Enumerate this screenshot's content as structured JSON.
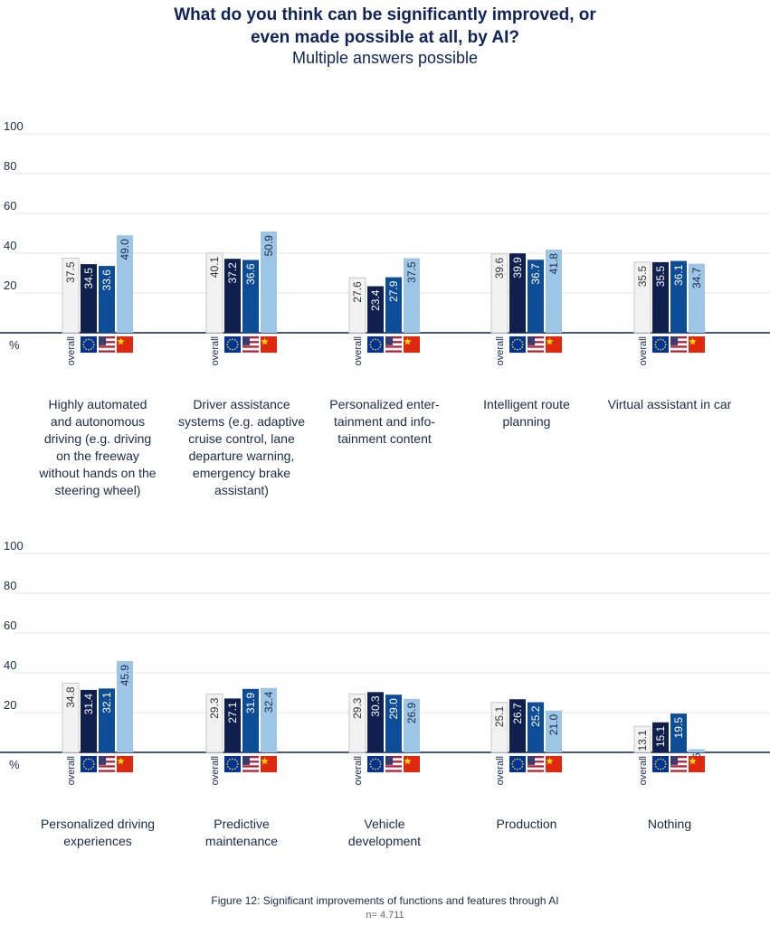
{
  "title_line1": "What do you think can be significantly improved, or",
  "title_line2": "even made possible at all, by AI?",
  "subtitle": "Multiple answers possible",
  "caption": "Figure 12: Significant improvements of functions and features through AI",
  "note": "n= 4.711",
  "colors": {
    "overall": "#f2f2f2",
    "eu": "#0f1f4e",
    "us": "#0d4c96",
    "cn": "#9dc5e6",
    "axis": "#10245a",
    "grid": "#e6e6e6"
  },
  "chart_data": [
    {
      "type": "bar",
      "ylim": [
        0,
        100
      ],
      "yticks": [
        20,
        40,
        60,
        80,
        100
      ],
      "unit_label": "%",
      "series": [
        {
          "name": "overall",
          "values": [
            37.5,
            40.1,
            27.6,
            39.6,
            35.5
          ]
        },
        {
          "values": [
            34.5,
            37.2,
            23.4,
            39.9,
            35.5
          ]
        },
        {
          "values": [
            33.6,
            36.6,
            27.9,
            36.7,
            36.1
          ]
        },
        {
          "values": [
            49.0,
            50.9,
            37.5,
            41.8,
            34.7
          ]
        }
      ],
      "flag_icons": [
        "eu-flag-icon",
        "us-flag-icon",
        "china-flag-icon"
      ],
      "categories": [
        [
          "Highly automated",
          "and autonomous",
          "driving (e.g. driving",
          "on the freeway",
          "without hands on the",
          "steering wheel)"
        ],
        [
          "Driver assistance",
          "systems (e.g. adaptive",
          "cruise control, lane",
          "departure warning,",
          "emergency brake",
          "assistant)"
        ],
        [
          "Personalized enter-",
          "tainment and info-",
          "tainment content"
        ],
        [
          "Intelligent route",
          "planning"
        ],
        [
          "Virtual assistant in car"
        ]
      ]
    },
    {
      "type": "bar",
      "ylim": [
        0,
        100
      ],
      "yticks": [
        20,
        40,
        60,
        80,
        100
      ],
      "unit_label": "%",
      "series": [
        {
          "name": "overall",
          "values": [
            34.8,
            29.3,
            29.3,
            25.1,
            13.1
          ]
        },
        {
          "values": [
            31.4,
            27.1,
            30.3,
            26.7,
            15.1
          ]
        },
        {
          "values": [
            32.1,
            31.9,
            29.0,
            25.2,
            19.5
          ]
        },
        {
          "values": [
            45.9,
            32.4,
            26.9,
            21.0,
            1.6
          ]
        }
      ],
      "flag_icons": [
        "eu-flag-icon",
        "us-flag-icon",
        "china-flag-icon"
      ],
      "categories": [
        [
          "Personalized driving",
          "experiences"
        ],
        [
          "Predictive",
          "maintenance"
        ],
        [
          "Vehicle",
          "development"
        ],
        [
          "Production"
        ],
        [
          "Nothing"
        ]
      ]
    }
  ]
}
